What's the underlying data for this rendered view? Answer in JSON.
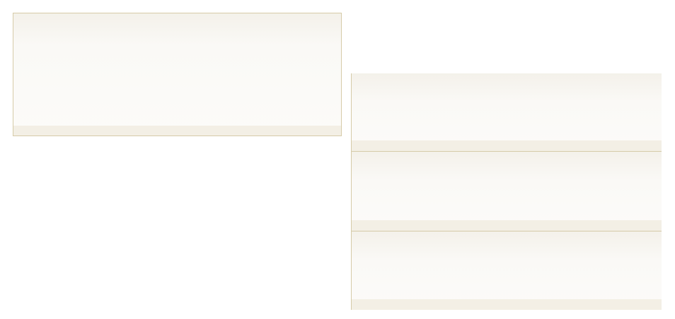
{
  "colors": {
    "panel_border": "#d6cba8",
    "panel_header_tint": "#f4f1ea",
    "panel_body": "#fcfbf9",
    "panel_footer": "#f3efe5",
    "page_background": "#ffffff"
  },
  "left_panel": {},
  "right_stack": {
    "panels": [
      {},
      {},
      {}
    ]
  }
}
